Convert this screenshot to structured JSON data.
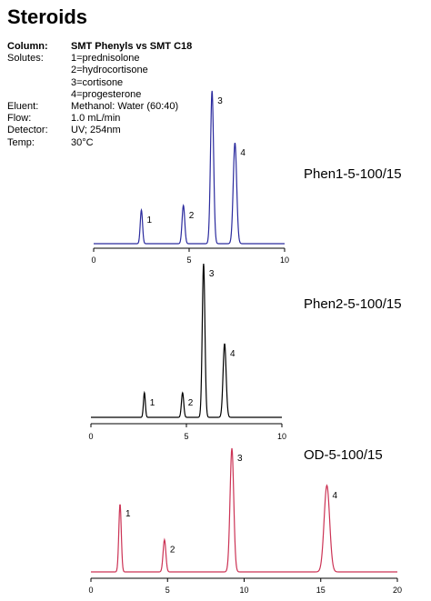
{
  "title": "Steroids",
  "specs": {
    "column": {
      "label": "Column:",
      "value": "SMT Phenyls vs SMT C18"
    },
    "solutes_label": "Solutes:",
    "solutes": [
      "1=prednisolone",
      "2=hydrocortisone",
      "3=cortisone",
      "4=progesterone"
    ],
    "eluent": {
      "label": "Eluent:",
      "value": "Methanol: Water (60:40)"
    },
    "flow": {
      "label": "Flow:",
      "value": "1.0 mL/min"
    },
    "detector": {
      "label": "Detector:",
      "value": "UV; 254nm"
    },
    "temp": {
      "label": "Temp:",
      "value": "30°C"
    }
  },
  "chart_data": [
    {
      "type": "line",
      "title": "Phen1-5-100/15",
      "color": "#2b2b9e",
      "xlim": [
        0,
        10
      ],
      "xticks": [
        "0",
        "5",
        "10"
      ],
      "ylim": [
        0,
        100
      ],
      "peaks": [
        {
          "label": "1",
          "x": 2.5,
          "height": 22,
          "width": 0.06
        },
        {
          "label": "2",
          "x": 4.7,
          "height": 25,
          "width": 0.07
        },
        {
          "label": "3",
          "x": 6.2,
          "height": 100,
          "width": 0.08
        },
        {
          "label": "4",
          "x": 7.4,
          "height": 66,
          "width": 0.09
        }
      ]
    },
    {
      "type": "line",
      "title": "Phen2-5-100/15",
      "color": "#000000",
      "xlim": [
        0,
        10
      ],
      "xticks": [
        "0",
        "5",
        "10"
      ],
      "ylim": [
        0,
        100
      ],
      "peaks": [
        {
          "label": "1",
          "x": 2.8,
          "height": 16,
          "width": 0.05
        },
        {
          "label": "2",
          "x": 4.8,
          "height": 16,
          "width": 0.06
        },
        {
          "label": "3",
          "x": 5.9,
          "height": 100,
          "width": 0.07
        },
        {
          "label": "4",
          "x": 7.0,
          "height": 48,
          "width": 0.08
        }
      ]
    },
    {
      "type": "line",
      "title": "OD-5-100/15",
      "color": "#cc3355",
      "xlim": [
        0,
        20
      ],
      "xticks": [
        "0",
        "5",
        "10",
        "15",
        "20"
      ],
      "ylim": [
        0,
        100
      ],
      "peaks": [
        {
          "label": "1",
          "x": 1.9,
          "height": 55,
          "width": 0.08
        },
        {
          "label": "2",
          "x": 4.8,
          "height": 26,
          "width": 0.09
        },
        {
          "label": "3",
          "x": 9.2,
          "height": 100,
          "width": 0.12
        },
        {
          "label": "4",
          "x": 15.4,
          "height": 70,
          "width": 0.18
        }
      ]
    }
  ]
}
